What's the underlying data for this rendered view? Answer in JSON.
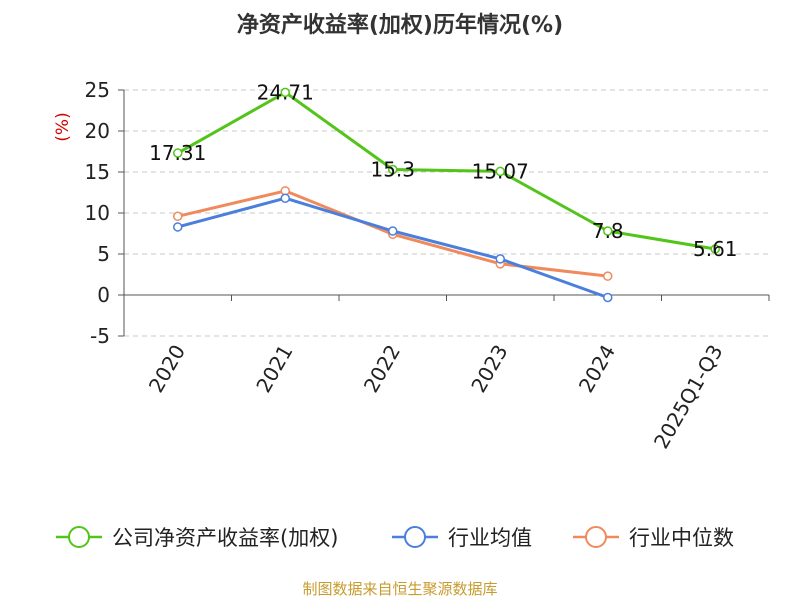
{
  "chart_data": {
    "type": "line",
    "title": "净资产收益率(加权)历年情况(%)",
    "ylabel": "(%)",
    "xlabel": "",
    "categories": [
      "2020",
      "2021",
      "2022",
      "2023",
      "2024",
      "2025Q1-Q3"
    ],
    "ylim": [
      -5,
      25
    ],
    "yticks": [
      25,
      20,
      15,
      10,
      5,
      0,
      -5
    ],
    "grid": true,
    "legend_position": "bottom",
    "series": [
      {
        "name": "公司净资产收益率(加权)",
        "color": "#52c41a",
        "values": [
          17.31,
          24.71,
          15.3,
          15.07,
          7.8,
          5.61
        ],
        "labels": [
          "17.31",
          "24.71",
          "15.3",
          "15.07",
          "7.8",
          "5.61"
        ]
      },
      {
        "name": "行业均值",
        "color": "#4a7fdc",
        "values": [
          8.3,
          11.8,
          7.8,
          4.4,
          -0.3,
          null
        ]
      },
      {
        "name": "行业中位数",
        "color": "#f08a5d",
        "values": [
          9.6,
          12.7,
          7.4,
          3.8,
          2.3,
          null
        ]
      }
    ]
  },
  "source": "制图数据来自恒生聚源数据库"
}
